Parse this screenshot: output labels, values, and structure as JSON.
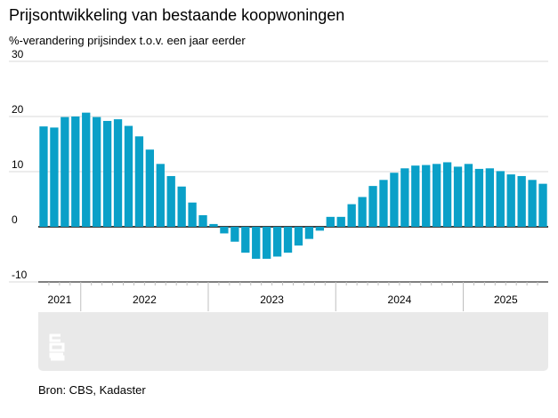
{
  "title": "Prijsontwikkeling van bestaande koopwoningen",
  "subtitle": "%-verandering prijsindex t.o.v. een jaar eerder",
  "source": "Bron: CBS, Kadaster",
  "logo_text": "cbs",
  "colors": {
    "bar": "#0aa0c8",
    "grid": "#d9d9d9",
    "panel": "#e9e9e9",
    "axis": "#000000"
  },
  "chart_data": {
    "type": "bar",
    "title": "Prijsontwikkeling van bestaande koopwoningen",
    "ylabel": "%-verandering prijsindex t.o.v. een jaar eerder",
    "xlabel": "",
    "ylim": [
      -10,
      30
    ],
    "yticks": [
      30,
      20,
      10,
      0,
      -10
    ],
    "grid": true,
    "year_groups": [
      {
        "label": "2021",
        "count": 4
      },
      {
        "label": "2022",
        "count": 12
      },
      {
        "label": "2023",
        "count": 12
      },
      {
        "label": "2024",
        "count": 12
      },
      {
        "label": "2025",
        "count": 8
      }
    ],
    "categories": [
      "2021-09",
      "2021-10",
      "2021-11",
      "2021-12",
      "2022-01",
      "2022-02",
      "2022-03",
      "2022-04",
      "2022-05",
      "2022-06",
      "2022-07",
      "2022-08",
      "2022-09",
      "2022-10",
      "2022-11",
      "2022-12",
      "2023-01",
      "2023-02",
      "2023-03",
      "2023-04",
      "2023-05",
      "2023-06",
      "2023-07",
      "2023-08",
      "2023-09",
      "2023-10",
      "2023-11",
      "2023-12",
      "2024-01",
      "2024-02",
      "2024-03",
      "2024-04",
      "2024-05",
      "2024-06",
      "2024-07",
      "2024-08",
      "2024-09",
      "2024-10",
      "2024-11",
      "2024-12",
      "2025-01",
      "2025-02",
      "2025-03",
      "2025-04",
      "2025-05",
      "2025-06",
      "2025-07",
      "2025-08"
    ],
    "values": [
      18.2,
      18.0,
      19.9,
      20.0,
      20.7,
      19.9,
      19.2,
      19.5,
      18.3,
      16.4,
      14.0,
      11.4,
      9.2,
      7.3,
      4.4,
      2.1,
      0.5,
      -1.2,
      -2.7,
      -4.7,
      -5.8,
      -5.8,
      -5.4,
      -4.7,
      -3.4,
      -2.2,
      -0.7,
      1.8,
      1.8,
      4.1,
      5.4,
      7.4,
      8.5,
      9.8,
      10.6,
      11.1,
      11.2,
      11.4,
      11.7,
      10.9,
      11.4,
      10.5,
      10.6,
      10.1,
      9.5,
      9.2,
      8.5,
      7.8
    ]
  }
}
